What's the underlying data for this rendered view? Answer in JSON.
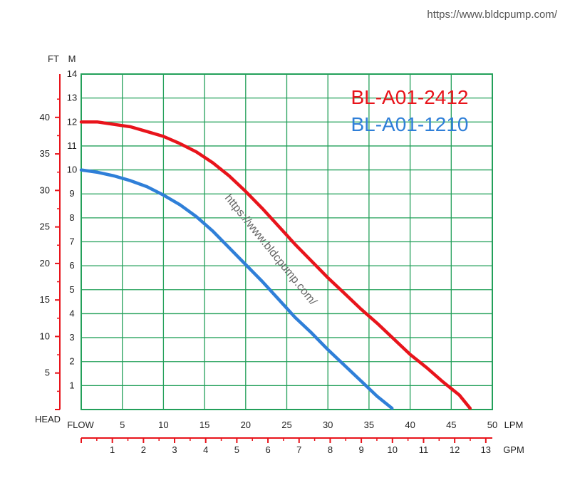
{
  "site_url": "https://www.bldcpump.com/",
  "watermark": "https://www.bldcpump.com/",
  "colors": {
    "grid": "#23a05a",
    "accent_red": "#e8141b",
    "accent_blue": "#2f7fd8",
    "text": "#222222"
  },
  "chart_data": {
    "type": "line",
    "title": "",
    "x_axis": {
      "start_label": "FLOW",
      "unit": "LPM",
      "range": [
        0,
        50
      ],
      "ticks": [
        5,
        10,
        15,
        20,
        25,
        30,
        35,
        40,
        45,
        50
      ],
      "grid_step": 5
    },
    "x2_axis": {
      "unit": "GPM",
      "range": [
        0,
        13.21
      ],
      "ticks": [
        1,
        2,
        3,
        4,
        5,
        6,
        7,
        8,
        9,
        10,
        11,
        12,
        13
      ]
    },
    "y_axis": {
      "start_label": "HEAD",
      "unit": "M",
      "range": [
        0,
        14
      ],
      "ticks": [
        1,
        2,
        3,
        4,
        5,
        6,
        7,
        8,
        9,
        10,
        11,
        12,
        13,
        14
      ],
      "grid_step": 1
    },
    "y2_axis": {
      "unit": "FT",
      "range": [
        0,
        45.93
      ],
      "ticks": [
        5,
        10,
        15,
        20,
        25,
        30,
        35,
        40
      ]
    },
    "grid": true,
    "legend_position": "top-right",
    "series": [
      {
        "name": "BL-A01-2412",
        "color": "#e8141b",
        "points": [
          [
            0,
            12.0
          ],
          [
            2,
            12.0
          ],
          [
            4,
            11.9
          ],
          [
            6,
            11.8
          ],
          [
            8,
            11.6
          ],
          [
            10,
            11.4
          ],
          [
            12,
            11.1
          ],
          [
            14,
            10.75
          ],
          [
            16,
            10.3
          ],
          [
            18,
            9.75
          ],
          [
            20,
            9.1
          ],
          [
            22,
            8.4
          ],
          [
            24,
            7.65
          ],
          [
            26,
            6.9
          ],
          [
            28,
            6.2
          ],
          [
            30,
            5.5
          ],
          [
            32,
            4.85
          ],
          [
            34,
            4.2
          ],
          [
            36,
            3.6
          ],
          [
            38,
            2.95
          ],
          [
            40,
            2.3
          ],
          [
            42,
            1.75
          ],
          [
            44,
            1.15
          ],
          [
            46,
            0.6
          ],
          [
            47.3,
            0.05
          ]
        ]
      },
      {
        "name": "BL-A01-1210",
        "color": "#2f7fd8",
        "points": [
          [
            0,
            10.0
          ],
          [
            2,
            9.9
          ],
          [
            4,
            9.75
          ],
          [
            6,
            9.55
          ],
          [
            8,
            9.3
          ],
          [
            10,
            8.95
          ],
          [
            12,
            8.55
          ],
          [
            14,
            8.05
          ],
          [
            16,
            7.45
          ],
          [
            18,
            6.75
          ],
          [
            20,
            6.05
          ],
          [
            22,
            5.35
          ],
          [
            24,
            4.6
          ],
          [
            26,
            3.85
          ],
          [
            28,
            3.2
          ],
          [
            30,
            2.5
          ],
          [
            32,
            1.85
          ],
          [
            34,
            1.2
          ],
          [
            36,
            0.55
          ],
          [
            37.8,
            0.05
          ]
        ]
      }
    ]
  }
}
